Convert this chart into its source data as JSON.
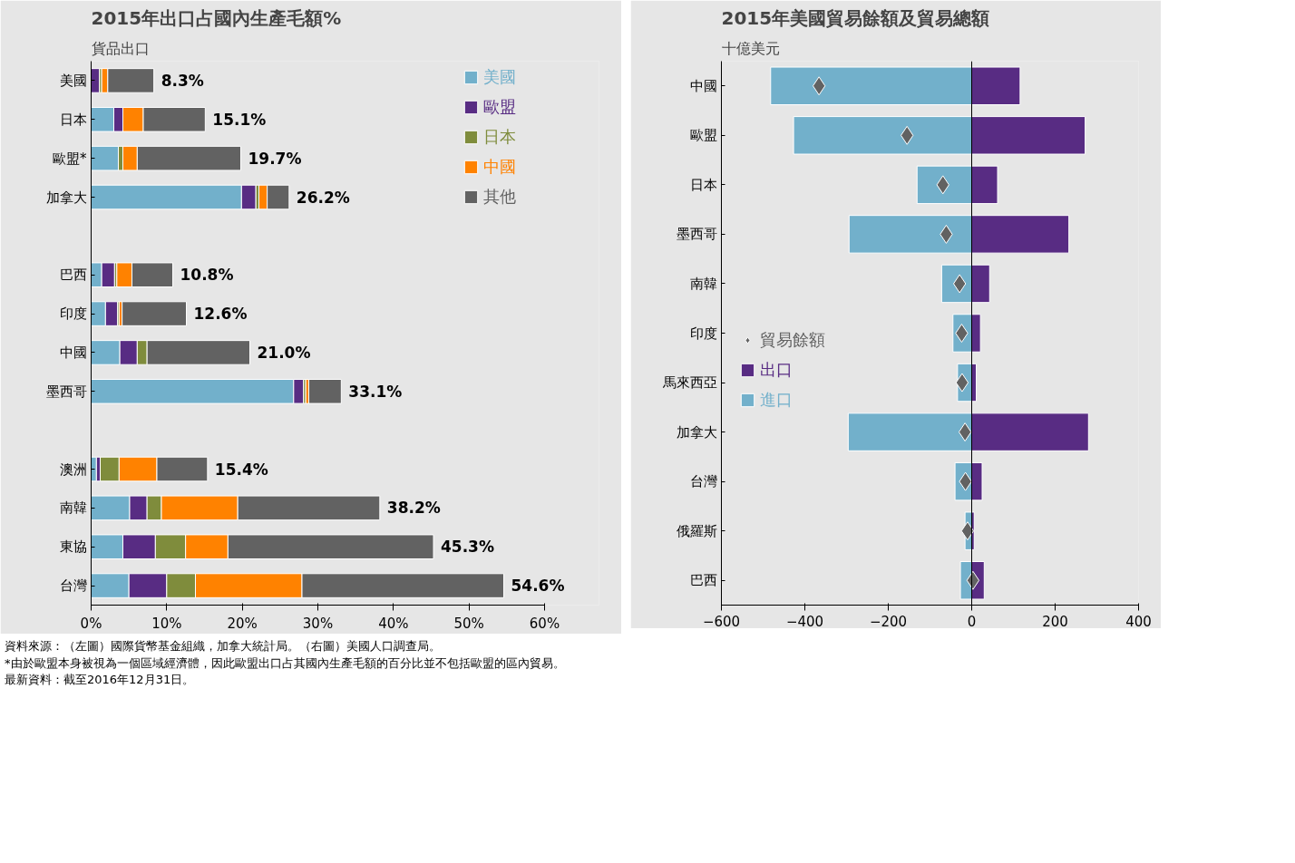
{
  "chart_data": [
    {
      "type": "bar",
      "orientation": "horizontal",
      "stacked": true,
      "title": "2015年出口占國內生產毛額%",
      "subtitle": "貨品出口",
      "categories": [
        "美國",
        "日本",
        "歐盟*",
        "加拿大",
        null,
        "巴西",
        "印度",
        "中國",
        "墨西哥",
        null,
        "澳洲",
        "南韓",
        "東協",
        "台灣"
      ],
      "series": [
        {
          "name": "美國",
          "color": "#72b0cb",
          "values": [
            0,
            3.0,
            3.6,
            19.9,
            null,
            1.4,
            1.9,
            3.8,
            26.8,
            null,
            0.7,
            5.1,
            4.2,
            5.0
          ]
        },
        {
          "name": "歐盟",
          "color": "#582c83",
          "values": [
            1.1,
            1.2,
            0,
            1.9,
            null,
            1.7,
            1.6,
            2.3,
            1.3,
            null,
            0.5,
            2.3,
            4.3,
            5.0
          ]
        },
        {
          "name": "日本",
          "color": "#7f8c3c",
          "values": [
            0.3,
            0,
            0.6,
            0.4,
            null,
            0.3,
            0.2,
            1.3,
            0.3,
            null,
            2.5,
            1.9,
            4.0,
            3.8
          ]
        },
        {
          "name": "中國",
          "color": "#ff8200",
          "values": [
            0.8,
            2.7,
            1.9,
            1.1,
            null,
            2.0,
            0.4,
            0,
            0.4,
            null,
            5.0,
            10.1,
            5.6,
            14.1
          ]
        },
        {
          "name": "其他",
          "color": "#626262",
          "values": [
            6.1,
            8.2,
            13.7,
            2.9,
            null,
            5.4,
            8.5,
            13.6,
            4.3,
            null,
            6.7,
            18.8,
            27.2,
            26.7
          ]
        }
      ],
      "totals": [
        "8.3%",
        "15.1%",
        "19.7%",
        "26.2%",
        null,
        "10.8%",
        "12.6%",
        "21.0%",
        "33.1%",
        null,
        "15.4%",
        "38.2%",
        "45.3%",
        "54.6%"
      ],
      "xlim": [
        0,
        60
      ],
      "xticks": [
        {
          "value": 0,
          "label": "0%"
        },
        {
          "value": 10,
          "label": "10%"
        },
        {
          "value": 20,
          "label": "20%"
        },
        {
          "value": 30,
          "label": "30%"
        },
        {
          "value": 40,
          "label": "40%"
        },
        {
          "value": 50,
          "label": "50%"
        },
        {
          "value": 60,
          "label": "60%"
        }
      ],
      "legend": "top right",
      "annotations": [
        "資料來源：（左圖）國際貨幣基金組織，加拿大統計局。（右圖）美國人口調查局。",
        "*由於歐盟本身被視為一個區域經濟體，因此歐盟出口占其國內生產毛額的百分比並不包括歐盟的區內貿易。",
        "最新資料：截至2016年12月31日。"
      ]
    },
    {
      "type": "bar",
      "orientation": "horizontal",
      "stacked": true,
      "title": "2015年美國貿易餘額及貿易總額",
      "subtitle": "十億美元",
      "categories": [
        "中國",
        "歐盟",
        "日本",
        "墨西哥",
        "南韓",
        "印度",
        "馬來西亞",
        "加拿大",
        "台灣",
        "俄羅斯",
        "巴西"
      ],
      "series": [
        {
          "name": "貿易餘額",
          "type": "scatter",
          "marker": "diamond",
          "color": "#626262",
          "values": [
            -366,
            -155,
            -69,
            -61,
            -29,
            -24,
            -23,
            -16,
            -15,
            -10,
            3
          ]
        },
        {
          "name": "出口",
          "color": "#582c83",
          "values": [
            116,
            272,
            62,
            233,
            43,
            21,
            11,
            280,
            25,
            6,
            30
          ]
        },
        {
          "name": "進口",
          "color": "#72b0cb",
          "values": [
            -482,
            -427,
            -131,
            -294,
            -72,
            -45,
            -34,
            -296,
            -40,
            -16,
            -27
          ]
        }
      ],
      "xlim": [
        -600,
        400
      ],
      "xticks": [
        -600,
        -400,
        -200,
        0,
        200,
        400
      ],
      "legend": "left"
    }
  ]
}
